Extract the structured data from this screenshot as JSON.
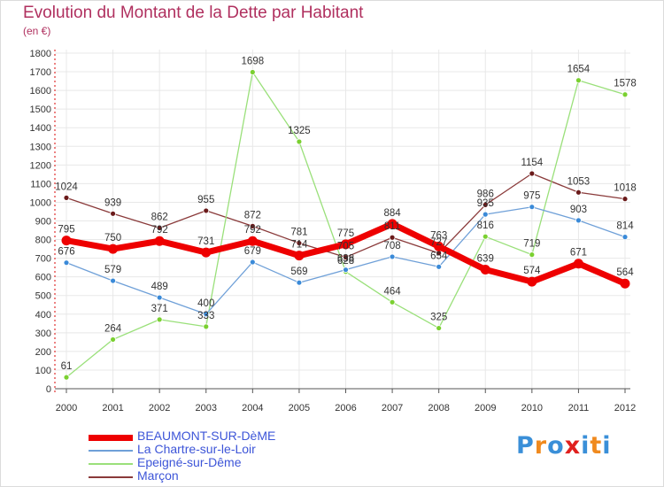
{
  "title": "Evolution du Montant de la Dette par Habitant",
  "subtitle": "(en €)",
  "logo": {
    "text": "Proxiti",
    "letter_colors": [
      "#3a8fd8",
      "#f08a1e",
      "#3a8fd8",
      "#e0201e",
      "#3a8fd8",
      "#f08a1e",
      "#3a8fd8"
    ]
  },
  "chart_data": {
    "type": "line",
    "title": "Evolution du Montant de la Dette par Habitant",
    "ylabel": "(en €)",
    "xlabel": "",
    "ylim": [
      0,
      1800
    ],
    "yticks": [
      "0",
      "100",
      "200",
      "300",
      "400",
      "500",
      "600",
      "700",
      "800",
      "900",
      "1000",
      "1100",
      "1200",
      "1300",
      "1400",
      "1500",
      "1600",
      "1700",
      "1800"
    ],
    "x": [
      "2000",
      "2001",
      "2002",
      "2003",
      "2004",
      "2005",
      "2006",
      "2007",
      "2008",
      "2009",
      "2010",
      "2011",
      "2012"
    ],
    "grid": true,
    "legend_position": "bottom-left",
    "series": [
      {
        "name": "BEAUMONT-SUR-DèME",
        "color": "#ee0000",
        "point_color": "#ee0000",
        "width": 7,
        "values": [
          795,
          750,
          792,
          731,
          792,
          714,
          775,
          884,
          763,
          639,
          574,
          671,
          564
        ],
        "labels": [
          "795",
          "750",
          "792",
          "731",
          "792",
          "714",
          "775",
          "884",
          "763",
          "639",
          "574",
          "671",
          "564"
        ]
      },
      {
        "name": "La Chartre-sur-le-Loir",
        "color": "#6fa0d8",
        "point_color": "#3a8ad8",
        "width": 1.3,
        "values": [
          676,
          579,
          489,
          400,
          679,
          569,
          638,
          708,
          654,
          935,
          975,
          903,
          814
        ],
        "labels": [
          "676",
          "579",
          "489",
          "400",
          "679",
          "569",
          "638",
          "708",
          "654",
          "935",
          "975",
          "903",
          "814"
        ]
      },
      {
        "name": "Epeigné-sur-Dême",
        "color": "#9ae07a",
        "point_color": "#7ad030",
        "width": 1.3,
        "values": [
          61,
          264,
          371,
          333,
          1698,
          1325,
          628,
          464,
          325,
          816,
          719,
          1654,
          1578
        ],
        "labels": [
          "61",
          "264",
          "371",
          "333",
          "1698",
          "1325",
          "628",
          "464",
          "325",
          "816",
          "719",
          "1654",
          "1578"
        ]
      },
      {
        "name": "Marçon",
        "color": "#8a3a3a",
        "point_color": "#6a1a1a",
        "width": 1.3,
        "values": [
          1024,
          939,
          862,
          955,
          872,
          781,
          705,
          811,
          727,
          986,
          1154,
          1053,
          1018
        ],
        "labels": [
          "1024",
          "939",
          "862",
          "955",
          "872",
          "781",
          "705",
          "811",
          "727",
          "986",
          "1154",
          "1053",
          "1018"
        ]
      }
    ]
  }
}
